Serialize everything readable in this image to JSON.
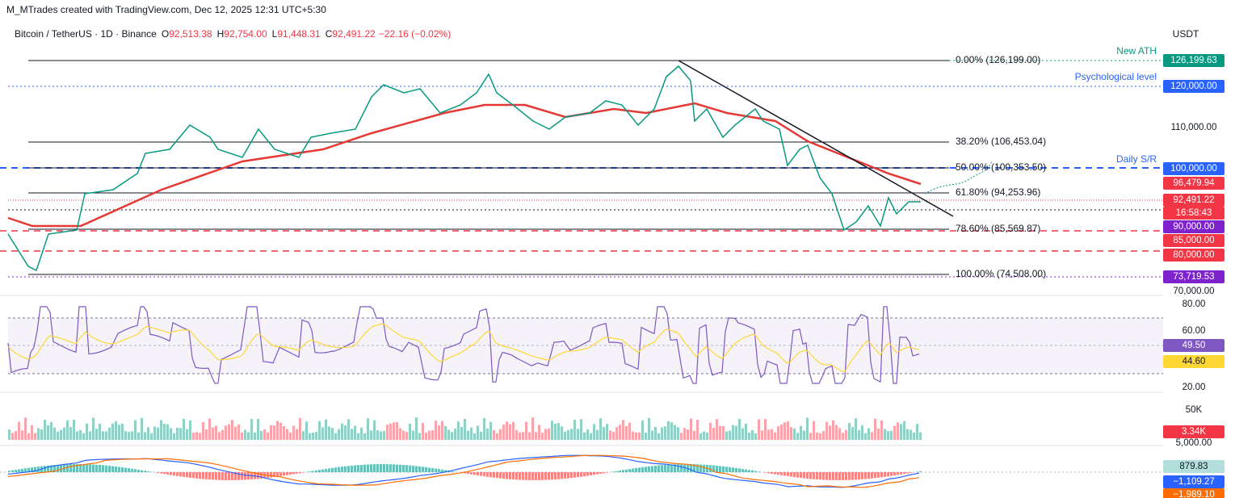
{
  "header": {
    "author": "M_MTrades created with TradingView.com, Dec 12, 2025 12:31 UTC+5:30",
    "symbol": "Bitcoin / TetherUS · 1D · Binance",
    "ohlc": [
      {
        "key": "O",
        "value": "92,513.38"
      },
      {
        "key": "H",
        "value": "92,754.00"
      },
      {
        "key": "L",
        "value": "91,448.31"
      },
      {
        "key": "C",
        "value": "92,491.22"
      }
    ],
    "change": "−22.16 (−0.02%)"
  },
  "annotations": {
    "ath": "New ATH",
    "psych": "Psychological level",
    "sr": "Daily S/R"
  },
  "fib": [
    "0.00% (126,199.00)",
    "38.20% (106,453.04)",
    "50.00% (100,353.50)",
    "61.80% (94,253.96)",
    "78.60% (85,569.87)",
    "100.00% (74,508.00)"
  ],
  "price_axis": {
    "currency": "USDT",
    "labels": [
      {
        "text": "126,199.63",
        "color": "#089981"
      },
      {
        "text": "120,000.00",
        "color": "#2962ff"
      },
      {
        "text": "110,000.00",
        "color": ""
      },
      {
        "text": "100,000.00",
        "color": "#2962ff"
      },
      {
        "text": "96,479.94",
        "color": "#f23645"
      },
      {
        "text": "92,491.22",
        "color": "#f23645"
      },
      {
        "text": "16:58:43",
        "color": "#f23645"
      },
      {
        "text": "90,000.00",
        "color": "#7e22ce"
      },
      {
        "text": "85,000.00",
        "color": "#f23645"
      },
      {
        "text": "80,000.00",
        "color": "#f23645"
      },
      {
        "text": "73,719.53",
        "color": "#7e22ce"
      },
      {
        "text": "70,000.00",
        "color": ""
      }
    ]
  },
  "rsi_axis": [
    {
      "text": "80.00",
      "color": ""
    },
    {
      "text": "60.00",
      "color": ""
    },
    {
      "text": "49.50",
      "color": "#7e57c2"
    },
    {
      "text": "44.60",
      "color": "#fdd835"
    },
    {
      "text": "20.00",
      "color": ""
    }
  ],
  "volume_axis": [
    {
      "text": "50K",
      "color": ""
    },
    {
      "text": "3.34K",
      "color": "#f23645"
    },
    {
      "text": "5,000.00",
      "color": ""
    }
  ],
  "macd_axis": [
    {
      "text": "879.83",
      "color": "#b2dfdb"
    },
    {
      "text": "−1,109.27",
      "color": "#2962ff"
    },
    {
      "text": "−1,989.10",
      "color": "#ff6d00"
    }
  ]
}
